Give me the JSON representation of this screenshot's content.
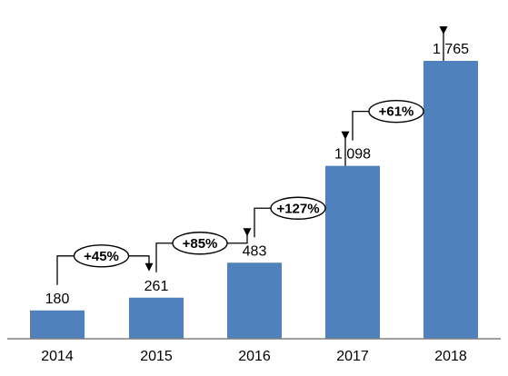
{
  "chart_data": {
    "type": "bar",
    "categories": [
      "2014",
      "2015",
      "2016",
      "2017",
      "2018"
    ],
    "values": [
      180,
      261,
      483,
      1098,
      1765
    ],
    "value_labels": [
      "180",
      "261",
      "483",
      "1 098",
      "1 765"
    ],
    "growth_labels": [
      "+45%",
      "+85%",
      "+127%",
      "+61%"
    ],
    "ylim": [
      0,
      1765
    ],
    "grid": false,
    "legend": "none",
    "bar_color": "#4f81bd"
  }
}
